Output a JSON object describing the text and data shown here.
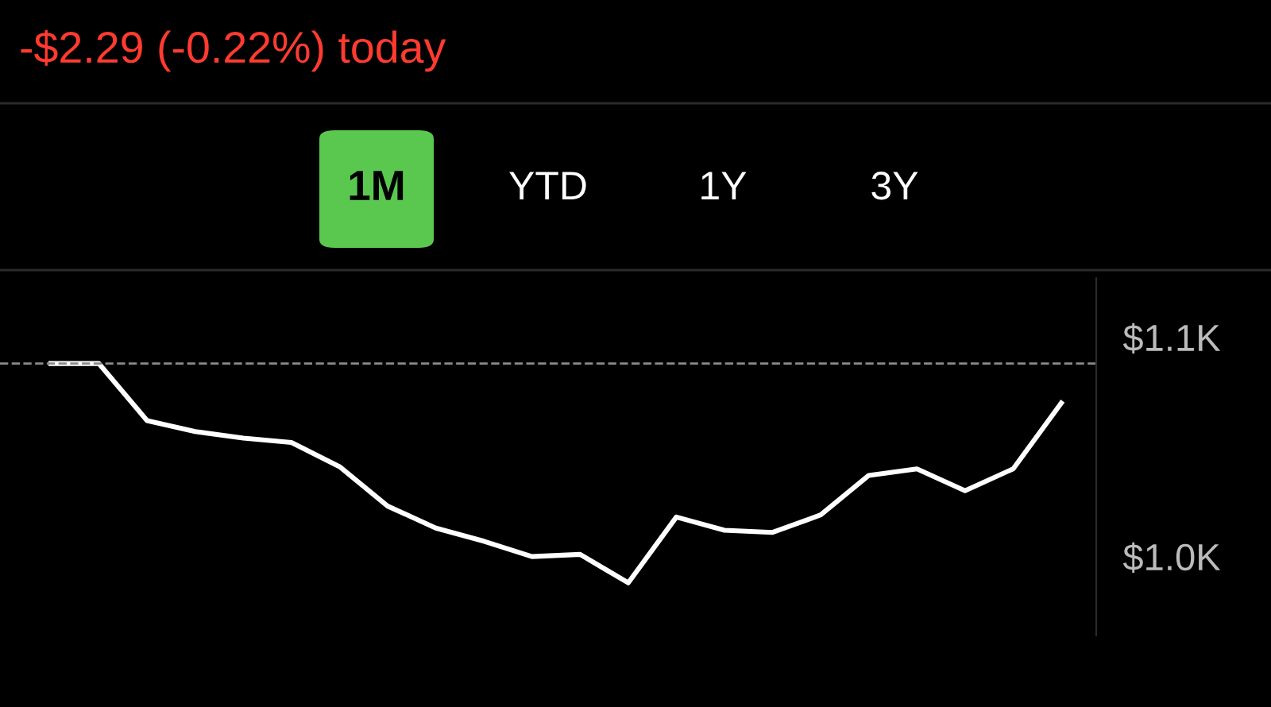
{
  "chart_data": {
    "type": "line",
    "title": "-$2.29 (-0.22%) today",
    "annotations": [
      "1M",
      "YTD",
      "1Y",
      "3Y"
    ],
    "categories": [
      null,
      null,
      null,
      null,
      null,
      null,
      null,
      null,
      null,
      null,
      null,
      null,
      null,
      null,
      null,
      null,
      null,
      null,
      null,
      null,
      null,
      null
    ],
    "series": [
      {
        "color": "#ffffff",
        "values": [
          1088,
          1088,
          1062,
          1057,
          1054,
          1052,
          1041,
          1023,
          1013,
          1007,
          1000,
          1001,
          988,
          1018,
          1012,
          1011,
          1019,
          1037,
          1040,
          1030,
          1040,
          1070
        ]
      }
    ],
    "yticks": [
      {
        "value": 1100,
        "label": "$1.1K"
      },
      {
        "value": 1000,
        "label": "$1.0K"
      }
    ],
    "ylim": [
      964,
      1127
    ],
    "ref_lines": [
      {
        "axis": "y",
        "value": 1088,
        "color": "#8a8a8a",
        "line_style": "dashed"
      }
    ],
    "grid": false,
    "legend": false,
    "marker": "none",
    "line_style": "solid"
  }
}
